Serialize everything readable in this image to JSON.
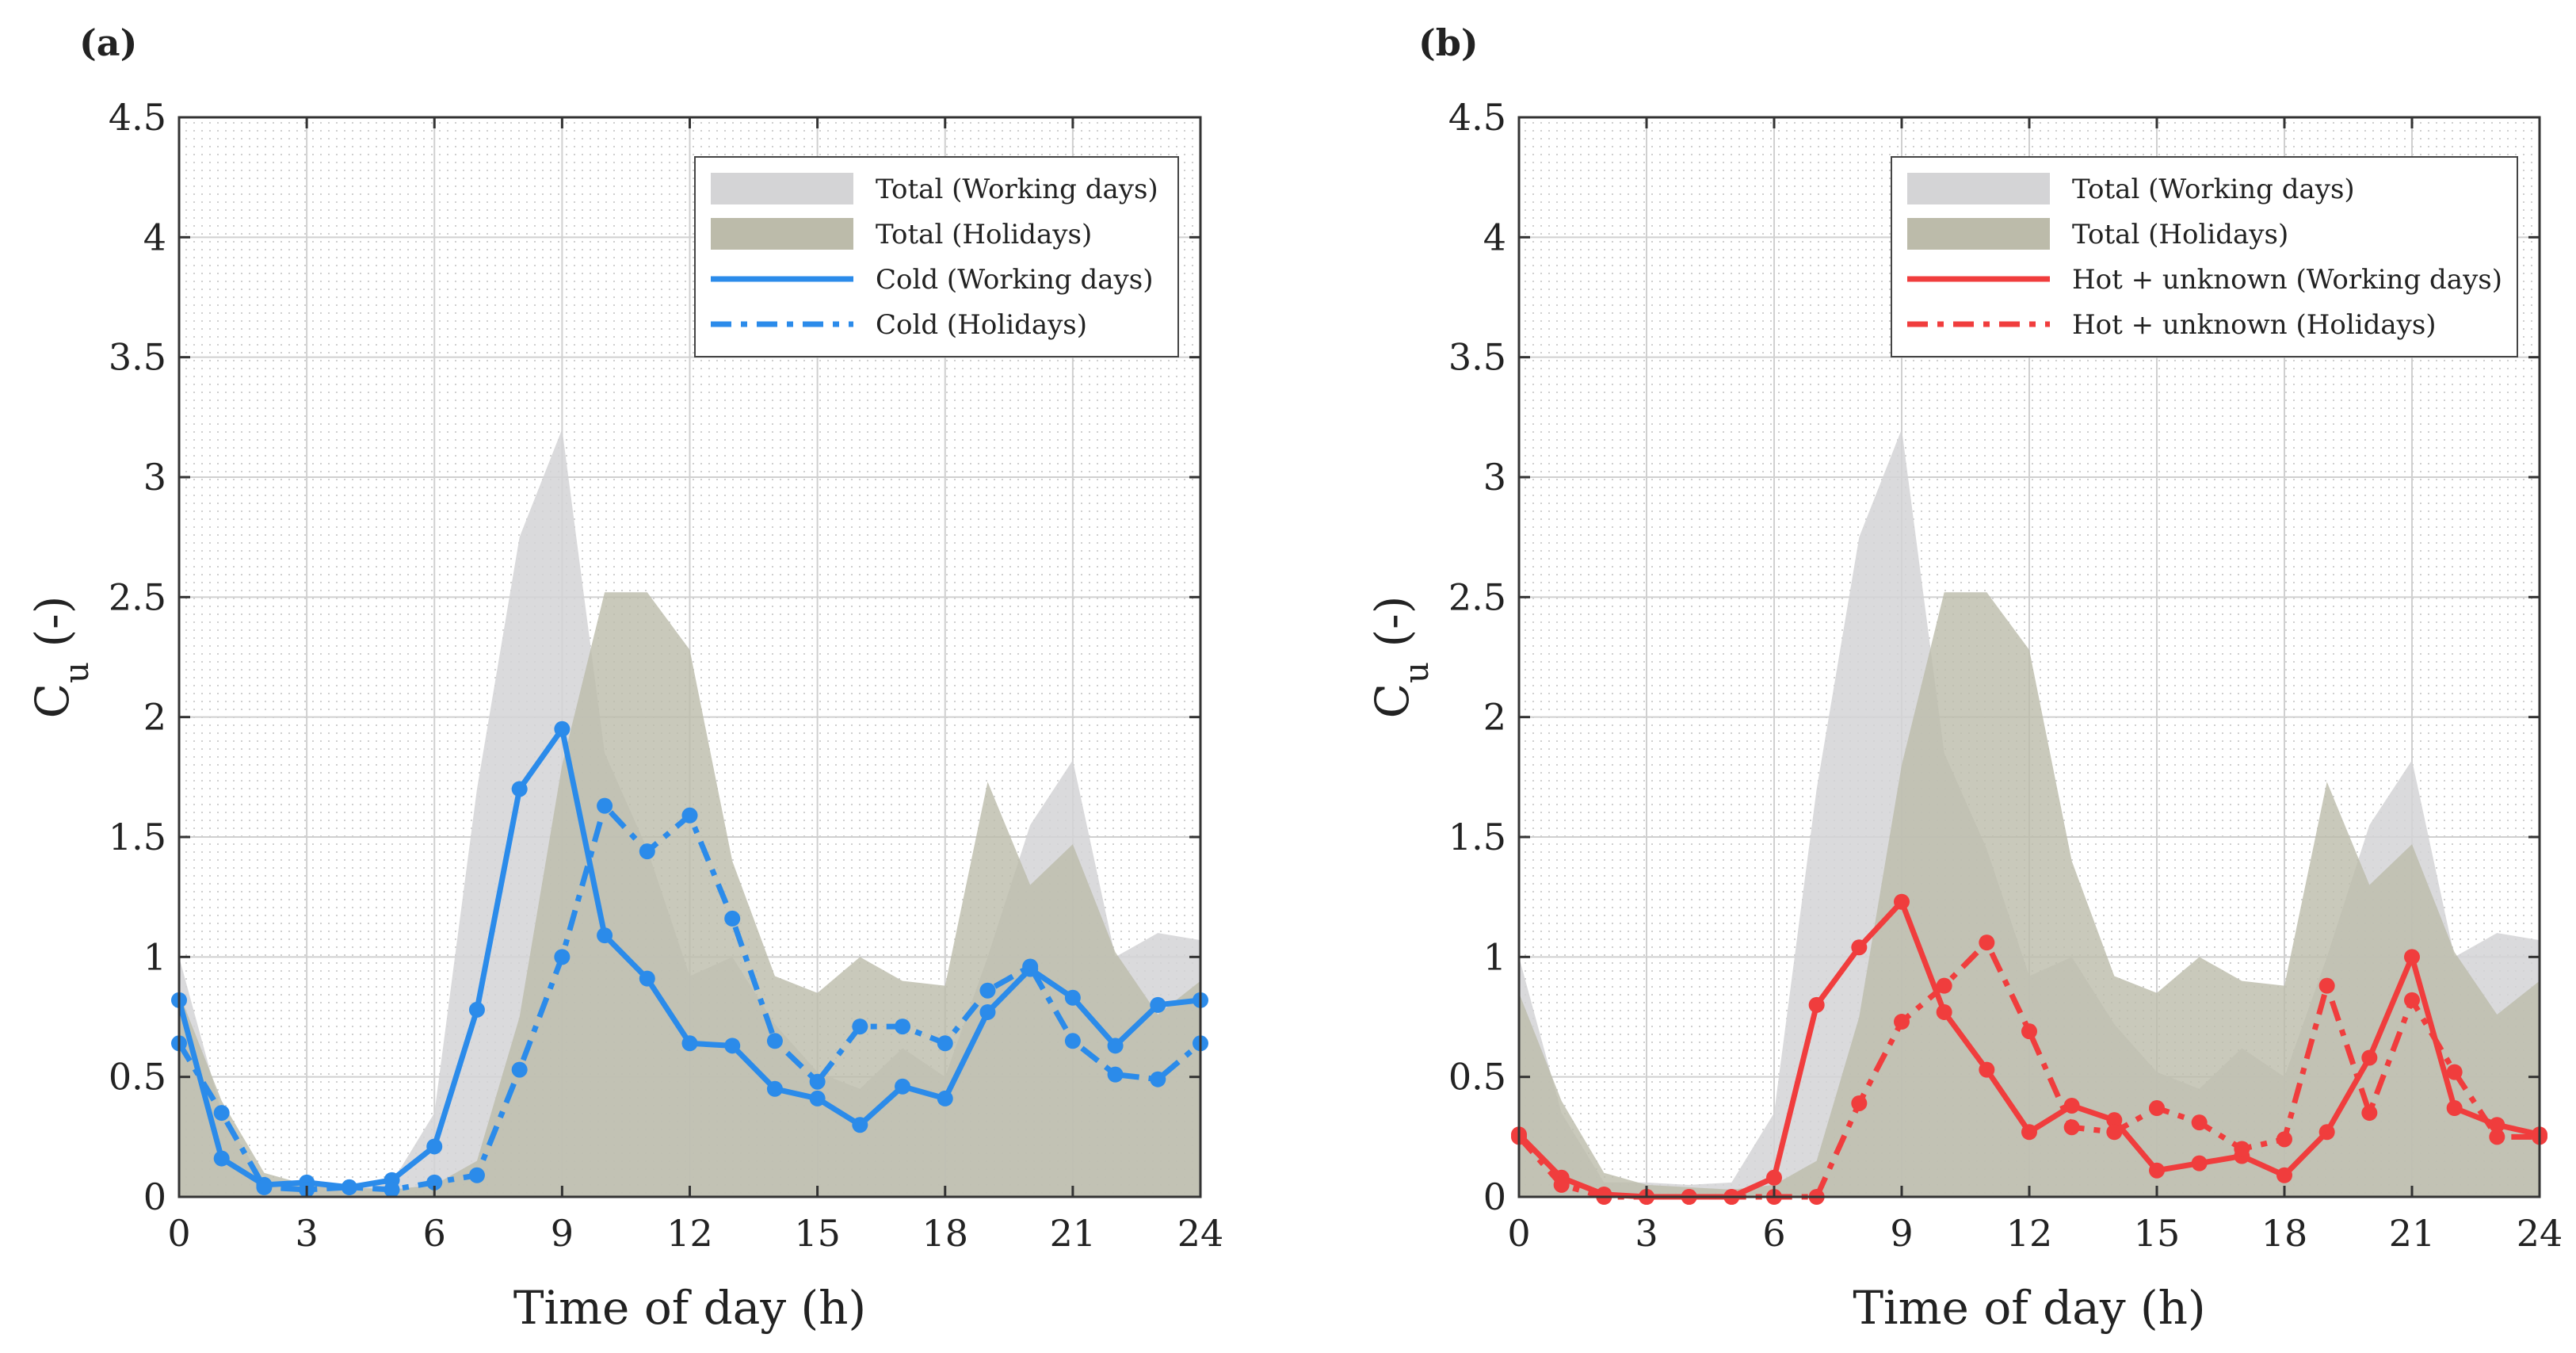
{
  "figure": {
    "colors": {
      "total_working": "#d4d4d6",
      "total_holidays": "#bcbbaa",
      "overlap": "#b0afa6",
      "cold": "#2b8bea",
      "hot": "#f03d3d",
      "axis": "#333333",
      "grid_major": "#d0d0d0",
      "grid_minor": "#bdbdbd"
    }
  },
  "chart_data": [
    {
      "panel": "(a)",
      "type": "area",
      "xlabel": "Time of day (h)",
      "ylabel_main": "C",
      "ylabel_sub": "u",
      "ylabel_tail": " (-)",
      "xlim": [
        0,
        24
      ],
      "ylim": [
        0,
        4.5
      ],
      "xticks": [
        0,
        3,
        6,
        9,
        12,
        15,
        18,
        21,
        24
      ],
      "yticks": [
        0,
        0.5,
        1,
        1.5,
        2,
        2.5,
        3,
        3.5,
        4,
        4.5
      ],
      "ytick_labels": [
        "0",
        "0.5",
        "1",
        "1.5",
        "2",
        "2.5",
        "3",
        "3.5",
        "4",
        "4.5"
      ],
      "grid": true,
      "legend_position": "top-right",
      "x": [
        0,
        1,
        2,
        3,
        4,
        5,
        6,
        7,
        8,
        9,
        10,
        11,
        12,
        13,
        14,
        15,
        16,
        17,
        18,
        19,
        20,
        21,
        22,
        23,
        24
      ],
      "series": [
        {
          "name": "Total (Working days)",
          "kind": "area",
          "color_key": "total_working",
          "values": [
            1.0,
            0.35,
            0.06,
            0.06,
            0.05,
            0.06,
            0.35,
            1.7,
            2.75,
            3.2,
            1.85,
            1.45,
            0.92,
            1.0,
            0.72,
            0.52,
            0.45,
            0.62,
            0.5,
            1.0,
            1.55,
            1.82,
            1.0,
            1.1,
            1.07
          ]
        },
        {
          "name": "Total (Holidays)",
          "kind": "area",
          "color_key": "total_holidays",
          "values": [
            0.85,
            0.4,
            0.1,
            0.05,
            0.04,
            0.03,
            0.05,
            0.15,
            0.75,
            1.8,
            2.52,
            2.52,
            2.28,
            1.4,
            0.92,
            0.85,
            1.0,
            0.9,
            0.88,
            1.73,
            1.3,
            1.47,
            1.02,
            0.76,
            0.9
          ]
        },
        {
          "name": "Cold (Working days)",
          "kind": "line",
          "style": "solid",
          "color_key": "cold",
          "values": [
            0.82,
            0.16,
            0.05,
            0.06,
            0.04,
            0.07,
            0.21,
            0.78,
            1.7,
            1.95,
            1.09,
            0.91,
            0.64,
            0.63,
            0.45,
            0.41,
            0.3,
            0.46,
            0.41,
            0.77,
            0.95,
            0.83,
            0.63,
            0.8,
            0.82
          ]
        },
        {
          "name": "Cold (Holidays)",
          "kind": "line",
          "style": "dashdot",
          "color_key": "cold",
          "values": [
            0.64,
            0.35,
            0.04,
            0.03,
            0.04,
            0.03,
            0.06,
            0.09,
            0.53,
            1.0,
            1.63,
            1.44,
            1.59,
            1.16,
            0.65,
            0.48,
            0.71,
            0.71,
            0.64,
            0.86,
            0.96,
            0.65,
            0.51,
            0.49,
            0.64
          ]
        }
      ]
    },
    {
      "panel": "(b)",
      "type": "area",
      "xlabel": "Time of day (h)",
      "ylabel_main": "C",
      "ylabel_sub": "u",
      "ylabel_tail": " (-)",
      "xlim": [
        0,
        24
      ],
      "ylim": [
        0,
        4.5
      ],
      "xticks": [
        0,
        3,
        6,
        9,
        12,
        15,
        18,
        21,
        24
      ],
      "yticks": [
        0,
        0.5,
        1,
        1.5,
        2,
        2.5,
        3,
        3.5,
        4,
        4.5
      ],
      "ytick_labels": [
        "0",
        "0.5",
        "1",
        "1.5",
        "2",
        "2.5",
        "3",
        "3.5",
        "4",
        "4.5"
      ],
      "grid": true,
      "legend_position": "top-right",
      "x": [
        0,
        1,
        2,
        3,
        4,
        5,
        6,
        7,
        8,
        9,
        10,
        11,
        12,
        13,
        14,
        15,
        16,
        17,
        18,
        19,
        20,
        21,
        22,
        23,
        24
      ],
      "series": [
        {
          "name": "Total (Working days)",
          "kind": "area",
          "color_key": "total_working",
          "values": [
            1.0,
            0.35,
            0.06,
            0.06,
            0.05,
            0.06,
            0.35,
            1.7,
            2.75,
            3.2,
            1.85,
            1.45,
            0.92,
            1.0,
            0.72,
            0.52,
            0.45,
            0.62,
            0.5,
            1.0,
            1.55,
            1.82,
            1.0,
            1.1,
            1.07
          ]
        },
        {
          "name": "Total (Holidays)",
          "kind": "area",
          "color_key": "total_holidays",
          "values": [
            0.85,
            0.4,
            0.1,
            0.05,
            0.04,
            0.03,
            0.05,
            0.15,
            0.75,
            1.8,
            2.52,
            2.52,
            2.28,
            1.4,
            0.92,
            0.85,
            1.0,
            0.9,
            0.88,
            1.73,
            1.3,
            1.47,
            1.02,
            0.76,
            0.9
          ]
        },
        {
          "name": "Hot + unknown (Working days)",
          "kind": "line",
          "style": "solid",
          "color_key": "hot",
          "values": [
            0.26,
            0.08,
            0.01,
            0.0,
            0.0,
            0.0,
            0.08,
            0.8,
            1.04,
            1.23,
            0.77,
            0.53,
            0.27,
            0.38,
            0.32,
            0.11,
            0.14,
            0.17,
            0.09,
            0.27,
            0.58,
            1.0,
            0.37,
            0.3,
            0.26
          ]
        },
        {
          "name": "Hot + unknown (Holidays)",
          "kind": "line",
          "style": "dashdot",
          "color_key": "hot",
          "values": [
            0.25,
            0.05,
            0.0,
            0.0,
            0.0,
            0.0,
            0.0,
            0.0,
            0.39,
            0.73,
            0.88,
            1.06,
            0.69,
            0.29,
            0.27,
            0.37,
            0.31,
            0.2,
            0.24,
            0.88,
            0.35,
            0.82,
            0.52,
            0.25,
            0.25
          ]
        }
      ]
    }
  ]
}
